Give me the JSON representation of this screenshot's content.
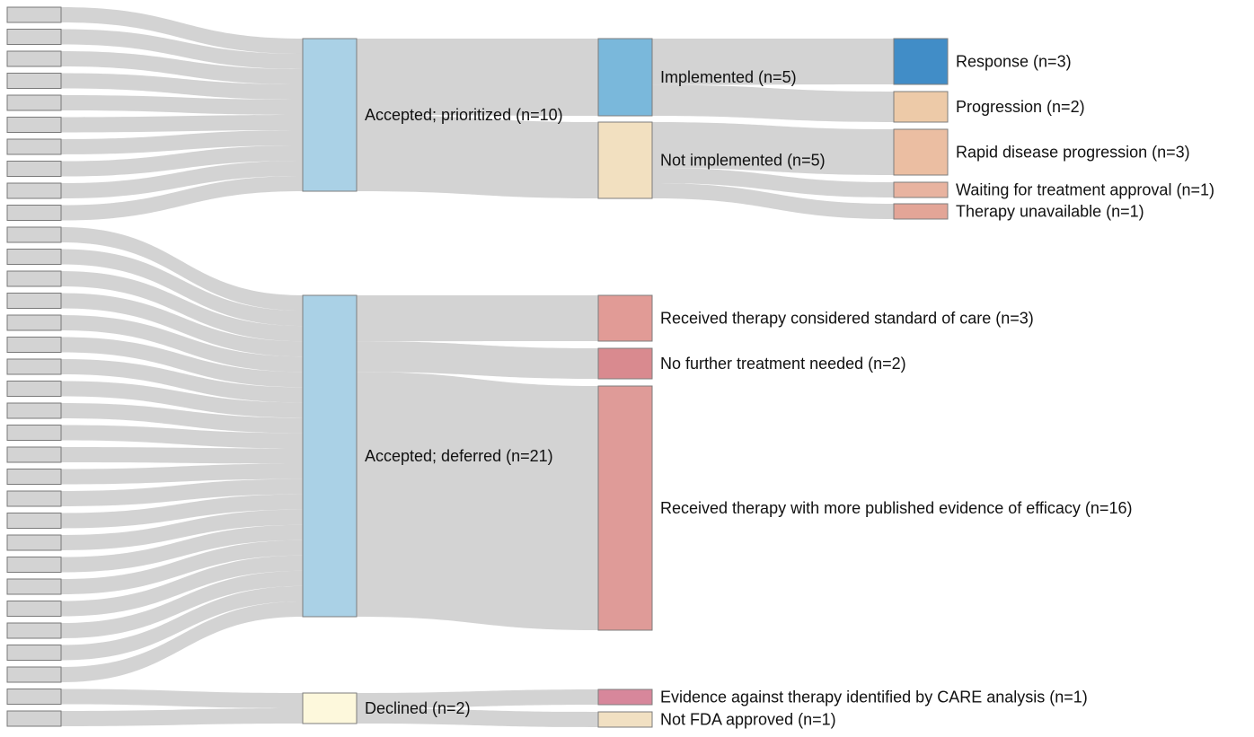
{
  "chart_data": {
    "type": "sankey",
    "source_node_count": 33,
    "source_color": "#d3d3d3",
    "link_color": "#cfcfcf",
    "nodes": [
      {
        "id": "prio",
        "label": "Accepted; prioritized (n=10)",
        "value": 10,
        "color": "#aad1e6"
      },
      {
        "id": "def",
        "label": "Accepted; deferred (n=21)",
        "value": 21,
        "color": "#aad1e6"
      },
      {
        "id": "dec",
        "label": "Declined (n=2)",
        "value": 2,
        "color": "#fdf8dc"
      },
      {
        "id": "impl",
        "label": "Implemented (n=5)",
        "value": 5,
        "color": "#7ab8db"
      },
      {
        "id": "notimpl",
        "label": "Not implemented (n=5)",
        "value": 5,
        "color": "#f2e0c0"
      },
      {
        "id": "resp",
        "label": "Response (n=3)",
        "value": 3,
        "color": "#418dc7"
      },
      {
        "id": "prog",
        "label": "Progression (n=2)",
        "value": 2,
        "color": "#edcaa8"
      },
      {
        "id": "rapid",
        "label": "Rapid disease progression (n=3)",
        "value": 3,
        "color": "#ebbea2"
      },
      {
        "id": "wait",
        "label": "Waiting for treatment approval (n=1)",
        "value": 1,
        "color": "#e8b3a0"
      },
      {
        "id": "unavail",
        "label": "Therapy unavailable (n=1)",
        "value": 1,
        "color": "#e3a597"
      },
      {
        "id": "soc",
        "label": "Received therapy considered standard of care (n=3)",
        "value": 3,
        "color": "#e19b96"
      },
      {
        "id": "nofurther",
        "label": "No further treatment needed (n=2)",
        "value": 2,
        "color": "#d98a8f"
      },
      {
        "id": "evidence",
        "label": "Received therapy with more published evidence of efficacy (n=16)",
        "value": 16,
        "color": "#df9b98"
      },
      {
        "id": "against",
        "label": "Evidence against therapy identified by CARE analysis (n=1)",
        "value": 1,
        "color": "#d7879b"
      },
      {
        "id": "nofda",
        "label": "Not FDA approved (n=1)",
        "value": 1,
        "color": "#f1e0c2"
      }
    ],
    "links": [
      {
        "source": "prio",
        "target": "impl",
        "value": 5
      },
      {
        "source": "prio",
        "target": "notimpl",
        "value": 5
      },
      {
        "source": "impl",
        "target": "resp",
        "value": 3
      },
      {
        "source": "impl",
        "target": "prog",
        "value": 2
      },
      {
        "source": "notimpl",
        "target": "rapid",
        "value": 3
      },
      {
        "source": "notimpl",
        "target": "wait",
        "value": 1
      },
      {
        "source": "notimpl",
        "target": "unavail",
        "value": 1
      },
      {
        "source": "def",
        "target": "soc",
        "value": 3
      },
      {
        "source": "def",
        "target": "nofurther",
        "value": 2
      },
      {
        "source": "def",
        "target": "evidence",
        "value": 16
      },
      {
        "source": "dec",
        "target": "against",
        "value": 1
      },
      {
        "source": "dec",
        "target": "nofda",
        "value": 1
      }
    ],
    "source_groups": [
      {
        "target": "prio",
        "count": 10
      },
      {
        "target": "def",
        "count": 21
      },
      {
        "target": "dec",
        "count": 2
      }
    ]
  }
}
